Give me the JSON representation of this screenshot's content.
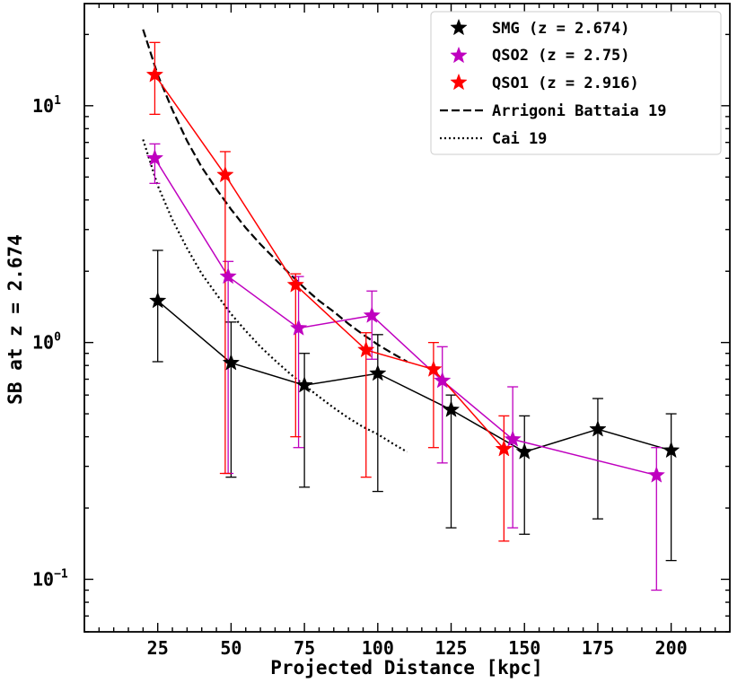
{
  "chart_data": {
    "type": "line",
    "title": "",
    "xlabel": "Projected Distance [kpc]",
    "ylabel": "SB at z = 2.674",
    "xscale": "linear",
    "yscale": "log",
    "xlim": [
      0,
      220
    ],
    "ylim": [
      0.06,
      27
    ],
    "xticks": [
      25,
      50,
      75,
      100,
      125,
      150,
      175,
      200
    ],
    "xtick_labels": [
      "25",
      "50",
      "75",
      "100",
      "125",
      "150",
      "175",
      "200"
    ],
    "yticks": [
      {
        "value": 10,
        "base": "10",
        "exp": "1"
      },
      {
        "value": 1,
        "base": "10",
        "exp": "0"
      },
      {
        "value": 0.1,
        "base": "10",
        "exp": "−1"
      }
    ],
    "legend_position": "top-right",
    "series": [
      {
        "name": "SMG (z = 2.674)",
        "color": "#000000",
        "marker": "star",
        "points": [
          {
            "x": 25,
            "y": 1.5,
            "lo": 0.83,
            "hi": 2.45
          },
          {
            "x": 50,
            "y": 0.82,
            "lo": 0.27,
            "hi": 1.22
          },
          {
            "x": 75,
            "y": 0.66,
            "lo": 0.245,
            "hi": 0.9
          },
          {
            "x": 100,
            "y": 0.74,
            "lo": 0.235,
            "hi": 1.08
          },
          {
            "x": 125,
            "y": 0.52,
            "lo": 0.165,
            "hi": 0.6
          },
          {
            "x": 150,
            "y": 0.345,
            "lo": 0.155,
            "hi": 0.49
          },
          {
            "x": 175,
            "y": 0.43,
            "lo": 0.18,
            "hi": 0.58
          },
          {
            "x": 200,
            "y": 0.35,
            "lo": 0.12,
            "hi": 0.5
          }
        ]
      },
      {
        "name": "QSO2 (z = 2.75)",
        "color": "#bf00bf",
        "marker": "star",
        "points": [
          {
            "x": 24,
            "y": 6.0,
            "lo": 4.7,
            "hi": 6.9
          },
          {
            "x": 49,
            "y": 1.9,
            "lo": 0.28,
            "hi": 2.2
          },
          {
            "x": 73,
            "y": 1.15,
            "lo": 0.36,
            "hi": 1.9
          },
          {
            "x": 98,
            "y": 1.3,
            "lo": 0.85,
            "hi": 1.65
          },
          {
            "x": 122,
            "y": 0.69,
            "lo": 0.31,
            "hi": 0.96
          },
          {
            "x": 146,
            "y": 0.39,
            "lo": 0.165,
            "hi": 0.65
          },
          {
            "x": 195,
            "y": 0.275,
            "lo": 0.09,
            "hi": 0.36
          }
        ]
      },
      {
        "name": "QSO1 (z = 2.916)",
        "color": "#ff0000",
        "marker": "star",
        "points": [
          {
            "x": 24,
            "y": 13.5,
            "lo": 9.2,
            "hi": 18.5
          },
          {
            "x": 48,
            "y": 5.1,
            "lo": 0.28,
            "hi": 6.4
          },
          {
            "x": 72,
            "y": 1.75,
            "lo": 0.4,
            "hi": 1.95
          },
          {
            "x": 96,
            "y": 0.93,
            "lo": 0.27,
            "hi": 1.1
          },
          {
            "x": 119,
            "y": 0.77,
            "lo": 0.36,
            "hi": 1.0
          },
          {
            "x": 143,
            "y": 0.355,
            "lo": 0.145,
            "hi": 0.49
          }
        ]
      }
    ],
    "curves": [
      {
        "name": "Arrigoni Battaia 19",
        "color": "#000000",
        "dash": "dashed",
        "points": [
          [
            20,
            21
          ],
          [
            25,
            13.5
          ],
          [
            30,
            9.6
          ],
          [
            35,
            7.1
          ],
          [
            40,
            5.5
          ],
          [
            45,
            4.45
          ],
          [
            50,
            3.65
          ],
          [
            55,
            3.05
          ],
          [
            60,
            2.6
          ],
          [
            65,
            2.25
          ],
          [
            70,
            1.95
          ],
          [
            75,
            1.7
          ],
          [
            80,
            1.5
          ],
          [
            85,
            1.35
          ],
          [
            90,
            1.2
          ],
          [
            95,
            1.08
          ],
          [
            100,
            0.98
          ],
          [
            105,
            0.9
          ],
          [
            110,
            0.83
          ]
        ]
      },
      {
        "name": "Cai 19",
        "color": "#000000",
        "dash": "dotted",
        "points": [
          [
            20,
            7.2
          ],
          [
            25,
            4.6
          ],
          [
            30,
            3.3
          ],
          [
            35,
            2.5
          ],
          [
            40,
            1.95
          ],
          [
            45,
            1.6
          ],
          [
            50,
            1.32
          ],
          [
            55,
            1.12
          ],
          [
            60,
            0.96
          ],
          [
            65,
            0.84
          ],
          [
            70,
            0.74
          ],
          [
            75,
            0.66
          ],
          [
            80,
            0.59
          ],
          [
            85,
            0.53
          ],
          [
            90,
            0.48
          ],
          [
            95,
            0.44
          ],
          [
            100,
            0.41
          ],
          [
            105,
            0.375
          ],
          [
            110,
            0.345
          ]
        ]
      }
    ]
  }
}
